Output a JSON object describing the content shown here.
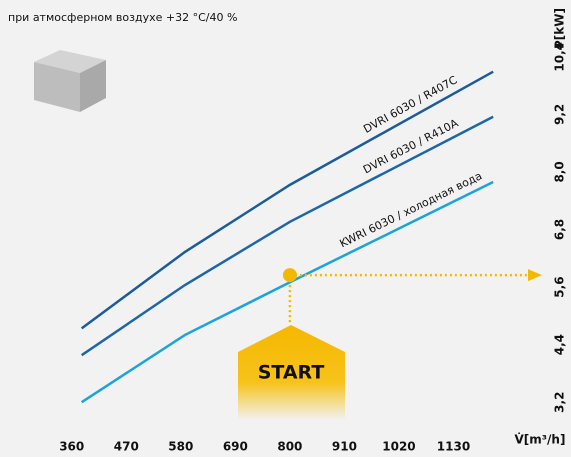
{
  "chart_data": {
    "type": "line",
    "title": "при атмосферном воздухе +32 °C/40 %",
    "x_label": "V̇[m³/h]",
    "y_label": "P[kW]",
    "series": [
      {
        "name": "DVRI 6030 / R407C",
        "color": "#1b5c9c",
        "x": [
          380,
          588,
          800,
          1210
        ],
        "values": [
          4.74,
          6.33,
          7.73,
          10.09
        ]
      },
      {
        "name": "DVRI 6030 / R410A",
        "color": "#1e66ab",
        "x": [
          380,
          588,
          800,
          1210
        ],
        "values": [
          4.18,
          5.64,
          6.96,
          9.15
        ]
      },
      {
        "name": "KWRI 6030 / холодная вода",
        "color": "#1aa3dc",
        "x": [
          380,
          588,
          800,
          1210
        ],
        "values": [
          3.2,
          4.6,
          5.7,
          7.79
        ]
      }
    ],
    "start_point": {
      "x": 800,
      "y": 5.85,
      "label": "START"
    },
    "xlim": [
      300,
      1250
    ],
    "xticks": [
      360,
      470,
      580,
      690,
      800,
      910,
      1020,
      1130
    ],
    "ylim": [
      2.6,
      11
    ],
    "yticks": [
      {
        "value": 3.2,
        "label": "3,2"
      },
      {
        "value": 4.4,
        "label": "4,4"
      },
      {
        "value": 5.6,
        "label": "5,6"
      },
      {
        "value": 6.8,
        "label": "6,8"
      },
      {
        "value": 8.0,
        "label": "8,0"
      },
      {
        "value": 9.2,
        "label": "9,2"
      },
      {
        "value": 10.4,
        "label": "10,4"
      }
    ],
    "grid": false
  }
}
